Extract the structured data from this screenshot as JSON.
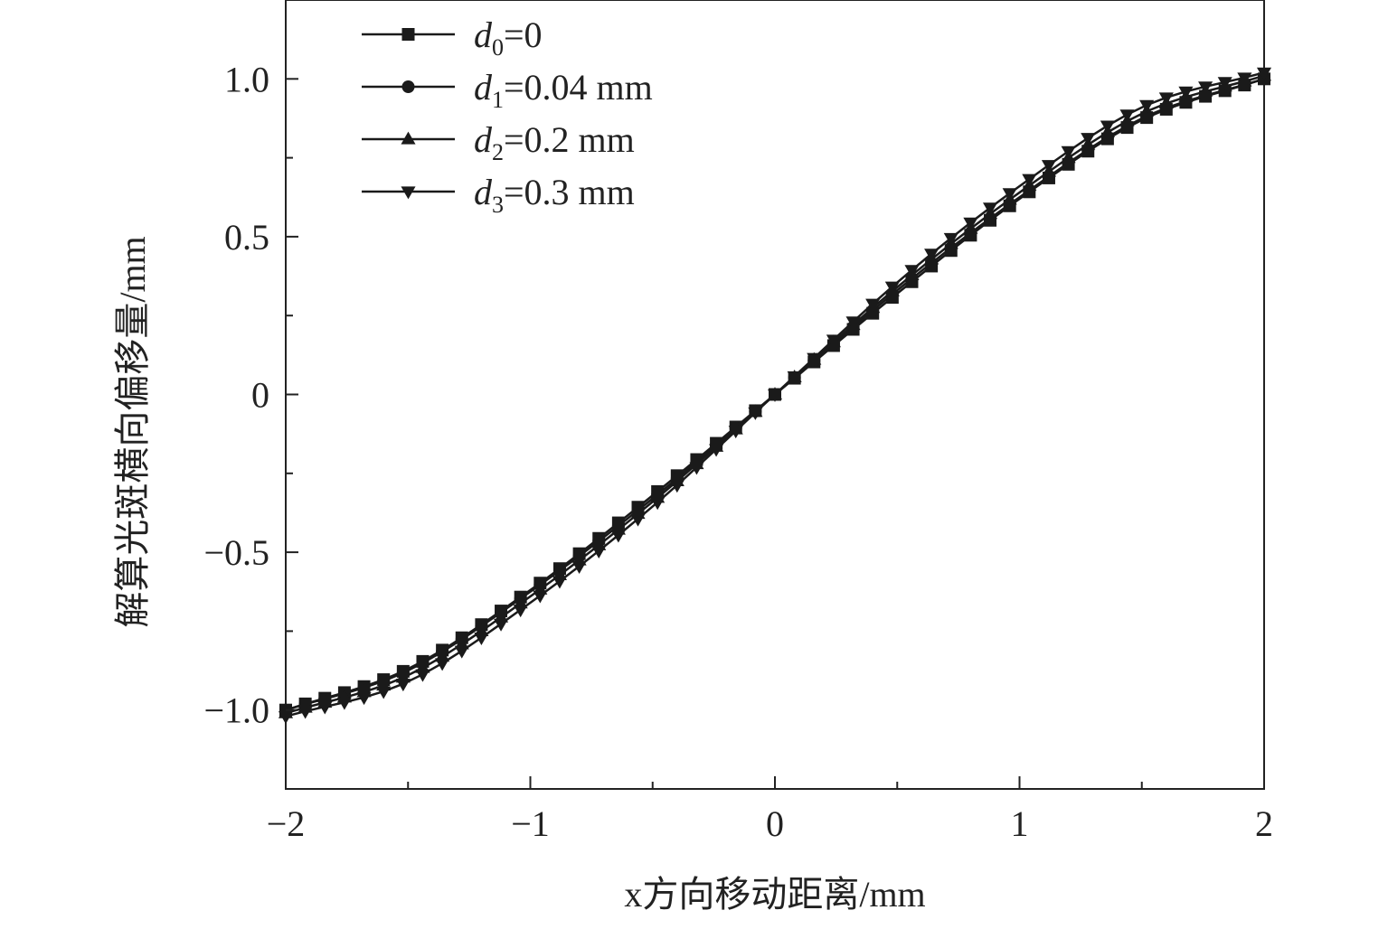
{
  "chart_data": {
    "type": "line",
    "xlabel": "x方向移动距离/mm",
    "ylabel": "解算光斑横向偏移量/mm",
    "xlim": [
      -2,
      2
    ],
    "ylim": [
      -1.25,
      1.25
    ],
    "x_ticks": [
      -2,
      -1,
      0,
      1,
      2
    ],
    "x_tick_labels": [
      "−2",
      "−1",
      "0",
      "1",
      "2"
    ],
    "y_ticks": [
      -1.0,
      -0.5,
      0,
      0.5,
      1.0
    ],
    "y_tick_labels": [
      "−1.0",
      "−0.5",
      "0",
      "0.5",
      "1.0"
    ],
    "grid": false,
    "legend_position": "top-left",
    "x": [
      -2.0,
      -1.5,
      -1.0,
      -0.5,
      0.0,
      0.5,
      1.0,
      1.5,
      2.0
    ],
    "series": [
      {
        "name": "d0=0",
        "label_base": "d",
        "label_sub": "0",
        "label_rest": "=0",
        "marker": "square",
        "values": [
          -1.0,
          -0.87,
          -0.62,
          -0.32,
          0.0,
          0.32,
          0.62,
          0.87,
          1.0
        ]
      },
      {
        "name": "d1=0.04 mm",
        "label_base": "d",
        "label_sub": "1",
        "label_rest": "=0.04 mm",
        "marker": "circle",
        "values": [
          -1.0,
          -0.875,
          -0.625,
          -0.33,
          0.0,
          0.33,
          0.625,
          0.875,
          1.0
        ]
      },
      {
        "name": "d2=0.2 mm",
        "label_base": "d",
        "label_sub": "2",
        "label_rest": "=0.2 mm",
        "marker": "triangle-up",
        "values": [
          -1.01,
          -0.89,
          -0.64,
          -0.34,
          0.0,
          0.34,
          0.64,
          0.89,
          1.01
        ]
      },
      {
        "name": "d3=0.3 mm",
        "label_base": "d",
        "label_sub": "3",
        "label_rest": "=0.3 mm",
        "marker": "triangle-down",
        "values": [
          -1.02,
          -0.91,
          -0.66,
          -0.355,
          0.0,
          0.355,
          0.66,
          0.91,
          1.02
        ]
      }
    ],
    "color": "#1a1a1a"
  }
}
